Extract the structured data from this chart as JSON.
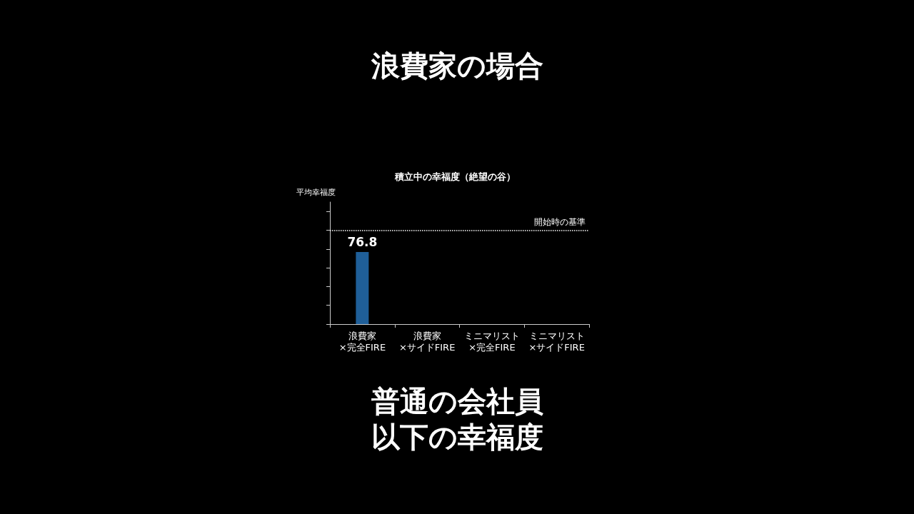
{
  "chart_data": {
    "type": "bar",
    "title": "積立中の幸福度（絶望の谷）",
    "ylabel": "平均幸福度",
    "categories": [
      "浪費家\n×完全FIRE",
      "浪費家\n×サイドFIRE",
      "ミニマリスト\n×完全FIRE",
      "ミニマリスト\n×サイドFIRE"
    ],
    "values": [
      76.8,
      null,
      null,
      null
    ],
    "color": "#1f5f99",
    "data_labels": true,
    "ylim": [
      0,
      130
    ],
    "yticks": [
      {
        "value": 0,
        "label": null
      },
      {
        "value": 20,
        "label": null
      },
      {
        "value": 40,
        "label": null
      },
      {
        "value": 60,
        "label": null
      },
      {
        "value": 80,
        "label": null
      },
      {
        "value": 100,
        "label": null
      },
      {
        "value": 120,
        "label": null
      }
    ],
    "ref_lines": [
      {
        "axis": "y",
        "value": 100,
        "label": "開始時の基準",
        "color": "#ffffff",
        "line_style": "dotted"
      }
    ],
    "grid": false,
    "annotations": [
      "浪費家の場合",
      "普通の会社員",
      "以下の幸福度"
    ]
  }
}
